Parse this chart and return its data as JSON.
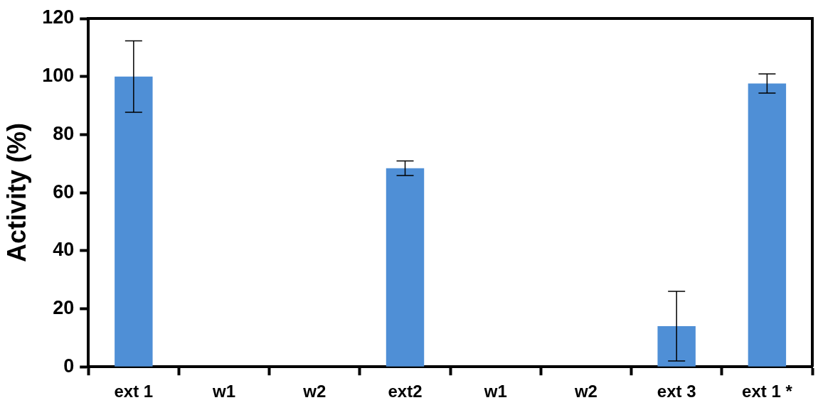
{
  "chart_data": {
    "type": "bar",
    "ylabel": "Activity (%)",
    "categories": [
      "ext 1",
      "w1",
      "w2",
      "ext2",
      "w1",
      "w2",
      "ext 3",
      "ext 1 *"
    ],
    "values": [
      100,
      0,
      0,
      68.4,
      0,
      0,
      14,
      97.6
    ],
    "errors": [
      12.3,
      null,
      null,
      2.5,
      null,
      null,
      12,
      3.3
    ],
    "color": "#4f8fd6",
    "ylim": [
      0,
      120
    ],
    "yticks": [
      0,
      20,
      40,
      60,
      80,
      100,
      120
    ],
    "grid": false,
    "legend": false
  }
}
